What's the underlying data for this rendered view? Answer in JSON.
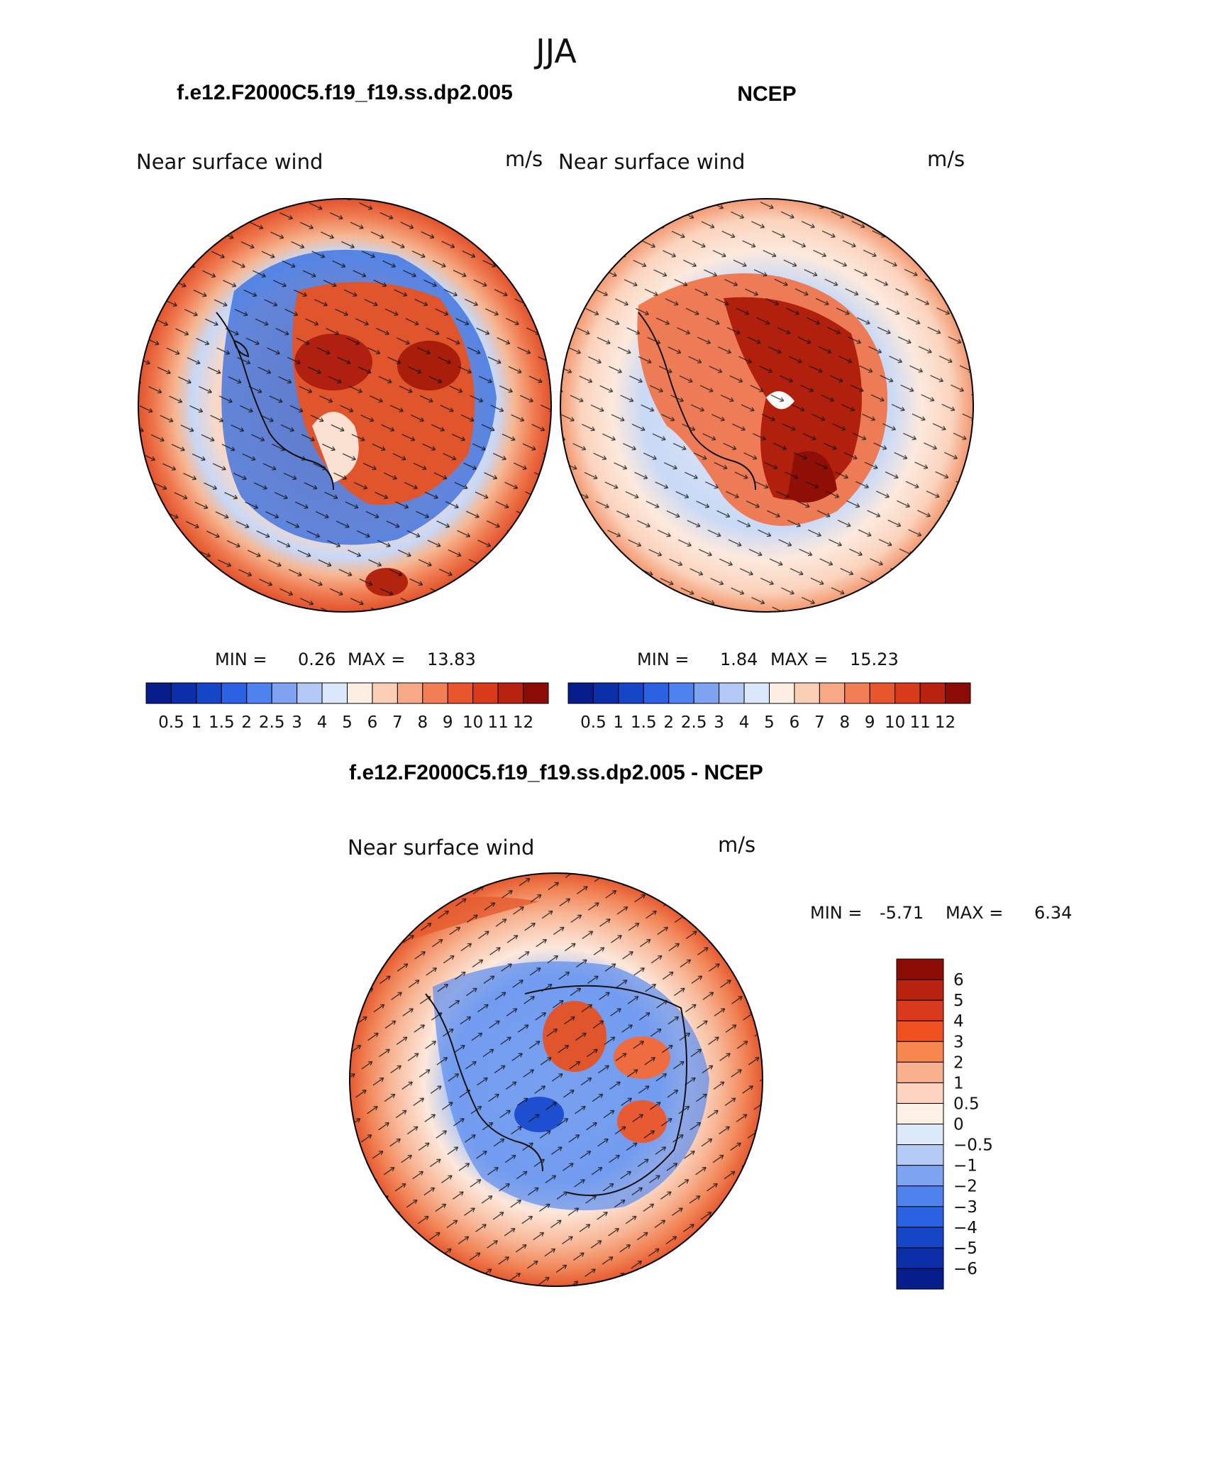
{
  "season_title": "JJA",
  "panels": [
    {
      "id": "model",
      "title": "f.e12.F2000C5.f19_f19.ss.dp2.005",
      "left_label": "Near surface wind",
      "right_label": "m/s",
      "stats": {
        "min_label": "MIN =",
        "min": "0.26",
        "max_label": "MAX =",
        "max": "13.83"
      }
    },
    {
      "id": "obs",
      "title": "NCEP",
      "left_label": "Near surface wind",
      "right_label": "m/s",
      "stats": {
        "min_label": "MIN =",
        "min": "1.84",
        "max_label": "MAX =",
        "max": "15.23"
      }
    },
    {
      "id": "diff",
      "title": "f.e12.F2000C5.f19_f19.ss.dp2.005 - NCEP",
      "left_label": "Near surface wind",
      "right_label": "m/s",
      "stats": {
        "min_label": "MIN =",
        "min": "-5.71",
        "max_label": "MAX =",
        "max": "6.34"
      }
    }
  ],
  "colorbar_abs": {
    "labels": [
      "0.5",
      "1",
      "1.5",
      "2",
      "2.5",
      "3",
      "4",
      "5",
      "6",
      "7",
      "8",
      "9",
      "10",
      "11",
      "12"
    ],
    "colors": [
      "#081d8c",
      "#0b2fa8",
      "#1546c7",
      "#2a62e3",
      "#4d82ef",
      "#7ea3f1",
      "#b2c8f5",
      "#dbe7fb",
      "#fdeee4",
      "#fbcfb6",
      "#f7a884",
      "#f17e55",
      "#e8562e",
      "#d93a1c",
      "#b8230f",
      "#8b0b05"
    ]
  },
  "colorbar_diff": {
    "labels": [
      "6",
      "5",
      "4",
      "3",
      "2",
      "1",
      "0.5",
      "0",
      "−0.5",
      "−1",
      "−2",
      "−3",
      "−4",
      "−5",
      "−6"
    ],
    "colors": [
      "#8b0b05",
      "#b8230f",
      "#d93a1c",
      "#f0501f",
      "#f6874f",
      "#f8b08f",
      "#fdd3bf",
      "#fdf0e6",
      "#dce9fb",
      "#b4cbf5",
      "#7ea3f1",
      "#4d82ef",
      "#2a62e3",
      "#1546c7",
      "#0b2fa8",
      "#081d8c"
    ]
  }
}
